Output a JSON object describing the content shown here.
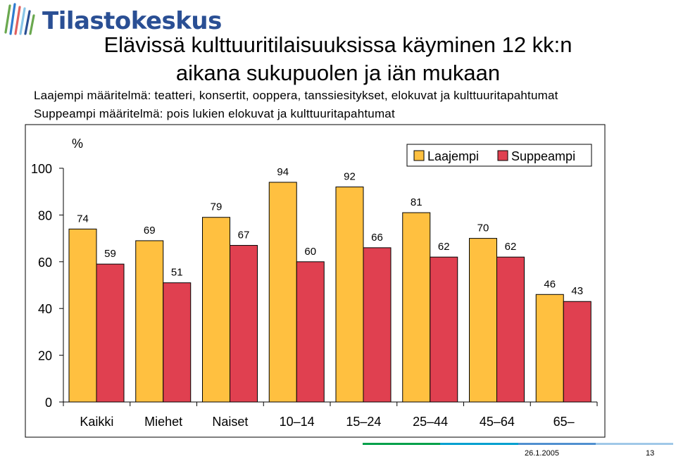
{
  "brand": {
    "name": "Tilastokeskus"
  },
  "title": {
    "line1": "Elävissä kulttuuritilaisuuksissa käyminen 12 kk:n",
    "line2": "aikana sukupuolen ja iän mukaan"
  },
  "subtitle": {
    "line1": "Laajempi määritelmä: teatteri, konsertit, ooppera, tanssiesitykset, elokuvat ja kulttuuritapahtumat",
    "line2": "Suppeampi määritelmä: pois lukien elokuvat ja kulttuuritapahtumat"
  },
  "chart_data": {
    "type": "bar",
    "ylabel": "%",
    "ylim": [
      0,
      100
    ],
    "yticks": [
      0,
      20,
      40,
      60,
      80,
      100
    ],
    "categories": [
      "Kaikki",
      "Miehet",
      "Naiset",
      "10–14",
      "15–24",
      "25–44",
      "45–64",
      "65–"
    ],
    "series": [
      {
        "name": "Laajempi",
        "color": "#FFC040",
        "values": [
          74,
          69,
          79,
          94,
          92,
          81,
          70,
          46
        ]
      },
      {
        "name": "Suppeampi",
        "color": "#E04050",
        "values": [
          59,
          51,
          67,
          60,
          66,
          62,
          62,
          43
        ]
      }
    ],
    "legend": "top-right",
    "grid": false
  },
  "footer": {
    "date": "26.1.2005",
    "page": "13",
    "colors": [
      "#00A04A",
      "#00A0D0",
      "#5090D0",
      "#A0C8E8"
    ]
  }
}
